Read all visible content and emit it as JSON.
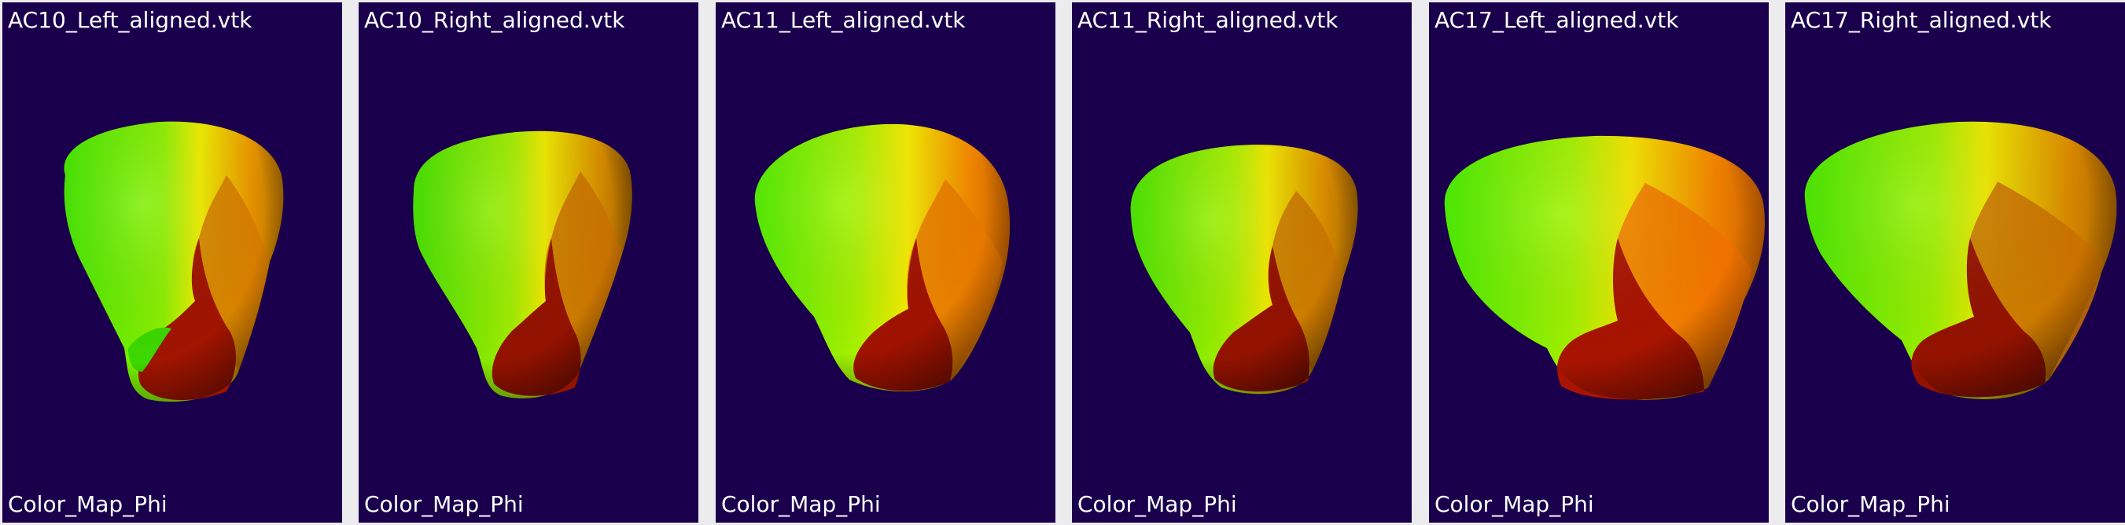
{
  "viewports": [
    {
      "title": "AC10_Left_aligned.vtk",
      "scalar_label": "Color_Map_Phi"
    },
    {
      "title": "AC10_Right_aligned.vtk",
      "scalar_label": "Color_Map_Phi"
    },
    {
      "title": "AC11_Left_aligned.vtk",
      "scalar_label": "Color_Map_Phi"
    },
    {
      "title": "AC11_Right_aligned.vtk",
      "scalar_label": "Color_Map_Phi"
    },
    {
      "title": "AC17_Left_aligned.vtk",
      "scalar_label": "Color_Map_Phi"
    },
    {
      "title": "AC17_Right_aligned.vtk",
      "scalar_label": "Color_Map_Phi"
    }
  ],
  "colors": {
    "background": "#1a004c",
    "frame": "#ecebee",
    "green": "#4cf000",
    "yellow": "#f2f000",
    "orange": "#f07000",
    "red": "#a01000",
    "dark_red": "#6a0800"
  }
}
